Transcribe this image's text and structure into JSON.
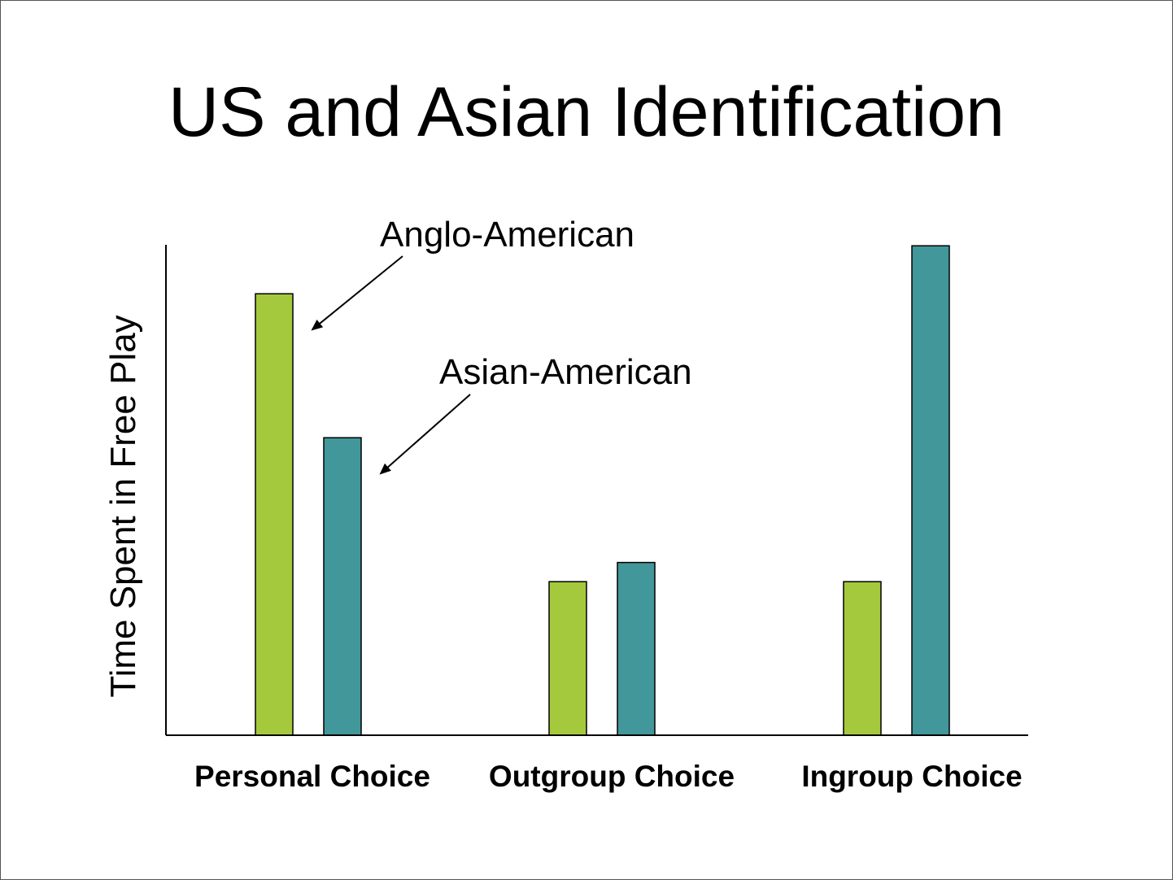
{
  "title": "US and Asian Identification",
  "chart_data": {
    "type": "bar",
    "categories": [
      "Personal Choice",
      "Outgroup Choice",
      "Ingroup Choice"
    ],
    "series": [
      {
        "name": "Anglo-American",
        "values": [
          92,
          32,
          32
        ],
        "color": "#a5c93d"
      },
      {
        "name": "Asian-American",
        "values": [
          62,
          36,
          102
        ],
        "color": "#42979a"
      }
    ],
    "xlabel": "",
    "ylabel": "Time Spent in Free Play",
    "ylim": [
      0,
      105
    ],
    "grid": false,
    "legend": "inline annotations with arrows",
    "annotations": [
      {
        "text": "Anglo-American",
        "series": 0,
        "category": 0
      },
      {
        "text": "Asian-American",
        "series": 1,
        "category": 0
      }
    ]
  }
}
